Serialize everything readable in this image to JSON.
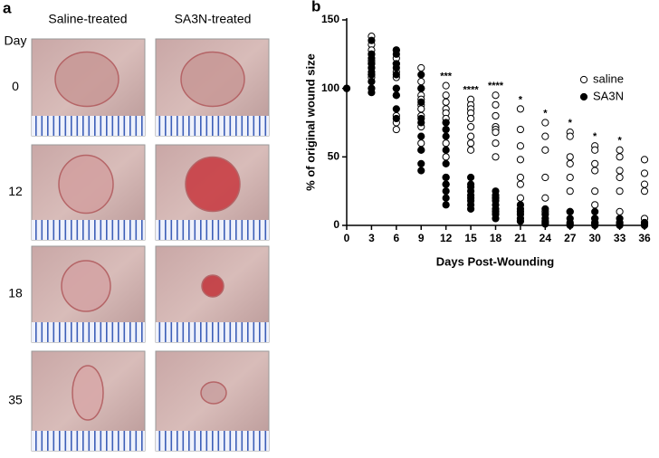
{
  "panel_a": {
    "label": "a",
    "columns": [
      "Saline-treated",
      "SA3N-treated"
    ],
    "row_header": "Day",
    "days": [
      "0",
      "12",
      "18",
      "35"
    ]
  },
  "chart_data": {
    "type": "scatter",
    "panel_label": "b",
    "x_label": "Days Post-Wounding",
    "y_label": "% of original wound size",
    "xlim": [
      0,
      36
    ],
    "xticks": [
      0,
      3,
      6,
      9,
      12,
      15,
      18,
      21,
      24,
      27,
      30,
      33,
      36
    ],
    "ylim": [
      0,
      150
    ],
    "yticks": [
      0,
      50,
      100,
      150
    ],
    "legend": "upper right",
    "series": [
      {
        "name": "saline",
        "marker": "open",
        "color": "#000000",
        "groups": [
          {
            "x": 0,
            "values": [
              100
            ]
          },
          {
            "x": 3,
            "values": [
              138,
              132,
              128,
              125,
              120,
              118,
              115,
              110,
              108,
              105,
              100
            ]
          },
          {
            "x": 6,
            "values": [
              128,
              122,
              118,
              112,
              108,
              100,
              95,
              80,
              75,
              70
            ]
          },
          {
            "x": 9,
            "values": [
              115,
              105,
              100,
              95,
              92,
              88,
              85,
              80,
              72,
              60,
              55
            ]
          },
          {
            "x": 12,
            "values": [
              102,
              95,
              90,
              85,
              82,
              78,
              75,
              70,
              60,
              50,
              35,
              30
            ]
          },
          {
            "x": 15,
            "values": [
              92,
              88,
              85,
              82,
              78,
              72,
              65,
              60,
              55
            ]
          },
          {
            "x": 18,
            "values": [
              95,
              88,
              80,
              72,
              70,
              68,
              60,
              50,
              20
            ]
          },
          {
            "x": 21,
            "values": [
              85,
              70,
              58,
              48,
              35,
              30,
              20
            ]
          },
          {
            "x": 24,
            "values": [
              75,
              65,
              55,
              35,
              20,
              10
            ]
          },
          {
            "x": 27,
            "values": [
              68,
              65,
              50,
              45,
              35,
              25,
              10
            ]
          },
          {
            "x": 30,
            "values": [
              58,
              55,
              45,
              40,
              25,
              15,
              5,
              2
            ]
          },
          {
            "x": 33,
            "values": [
              55,
              50,
              40,
              35,
              25,
              10,
              2
            ]
          },
          {
            "x": 36,
            "values": [
              48,
              38,
              30,
              25,
              5,
              2
            ]
          }
        ]
      },
      {
        "name": "SA3N",
        "marker": "filled",
        "color": "#000000",
        "groups": [
          {
            "x": 0,
            "values": [
              100
            ]
          },
          {
            "x": 3,
            "values": [
              135,
              125,
              122,
              118,
              115,
              112,
              110,
              105,
              100,
              97
            ]
          },
          {
            "x": 6,
            "values": [
              128,
              125,
              118,
              115,
              110,
              100,
              95,
              85,
              78
            ]
          },
          {
            "x": 9,
            "values": [
              110,
              100,
              90,
              78,
              75,
              65,
              55,
              45,
              40
            ]
          },
          {
            "x": 12,
            "values": [
              75,
              70,
              65,
              55,
              45,
              35,
              30,
              25,
              20,
              15
            ]
          },
          {
            "x": 15,
            "values": [
              35,
              30,
              28,
              25,
              22,
              20,
              18,
              15,
              12
            ]
          },
          {
            "x": 18,
            "values": [
              25,
              22,
              20,
              18,
              15,
              12,
              10,
              8,
              5
            ]
          },
          {
            "x": 21,
            "values": [
              15,
              12,
              10,
              8,
              5,
              3
            ]
          },
          {
            "x": 24,
            "values": [
              12,
              8,
              5,
              3,
              2,
              1
            ]
          },
          {
            "x": 27,
            "values": [
              10,
              5,
              2,
              1,
              0
            ]
          },
          {
            "x": 30,
            "values": [
              10,
              5,
              2,
              1,
              0
            ]
          },
          {
            "x": 33,
            "values": [
              5,
              2,
              1,
              0
            ]
          },
          {
            "x": 36,
            "values": [
              2,
              1,
              0
            ]
          }
        ]
      }
    ],
    "annotations": [
      {
        "x": 12,
        "text": "***"
      },
      {
        "x": 15,
        "text": "****"
      },
      {
        "x": 18,
        "text": "****"
      },
      {
        "x": 21,
        "text": "*"
      },
      {
        "x": 24,
        "text": "*"
      },
      {
        "x": 27,
        "text": "*"
      },
      {
        "x": 30,
        "text": "*"
      },
      {
        "x": 33,
        "text": "*"
      }
    ]
  }
}
